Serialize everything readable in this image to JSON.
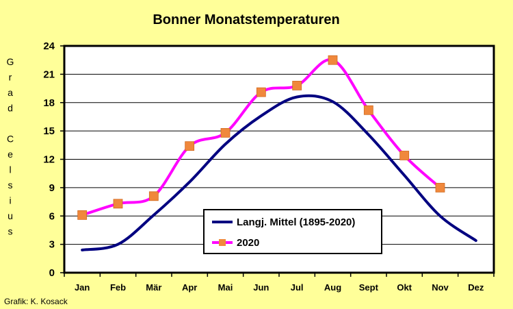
{
  "chart_data": {
    "type": "line",
    "title": "Bonner Monatstemperaturen",
    "ylabel": "Grad Celsius",
    "xlabel": "",
    "categories": [
      "Jan",
      "Feb",
      "Mär",
      "Apr",
      "Mai",
      "Jun",
      "Jul",
      "Aug",
      "Sept",
      "Okt",
      "Nov",
      "Dez"
    ],
    "ylim": [
      0,
      24
    ],
    "yticks": [
      0,
      3,
      6,
      9,
      12,
      15,
      18,
      21,
      24
    ],
    "grid": true,
    "legend_position": "lower-center",
    "series": [
      {
        "name": "Langj. Mittel (1895-2020)",
        "color": "#000080",
        "marker": "none",
        "values": [
          2.4,
          3.0,
          6.1,
          9.6,
          13.6,
          16.6,
          18.6,
          18.1,
          14.6,
          10.3,
          6.0,
          3.4
        ]
      },
      {
        "name": "2020",
        "color": "#ff00ff",
        "marker": "square",
        "marker_color": "#f0883c",
        "values": [
          6.1,
          7.3,
          8.1,
          13.4,
          14.8,
          19.1,
          19.8,
          22.5,
          17.2,
          12.4,
          9.0,
          null
        ]
      }
    ]
  },
  "credit": "Grafik:  K. Kosack"
}
